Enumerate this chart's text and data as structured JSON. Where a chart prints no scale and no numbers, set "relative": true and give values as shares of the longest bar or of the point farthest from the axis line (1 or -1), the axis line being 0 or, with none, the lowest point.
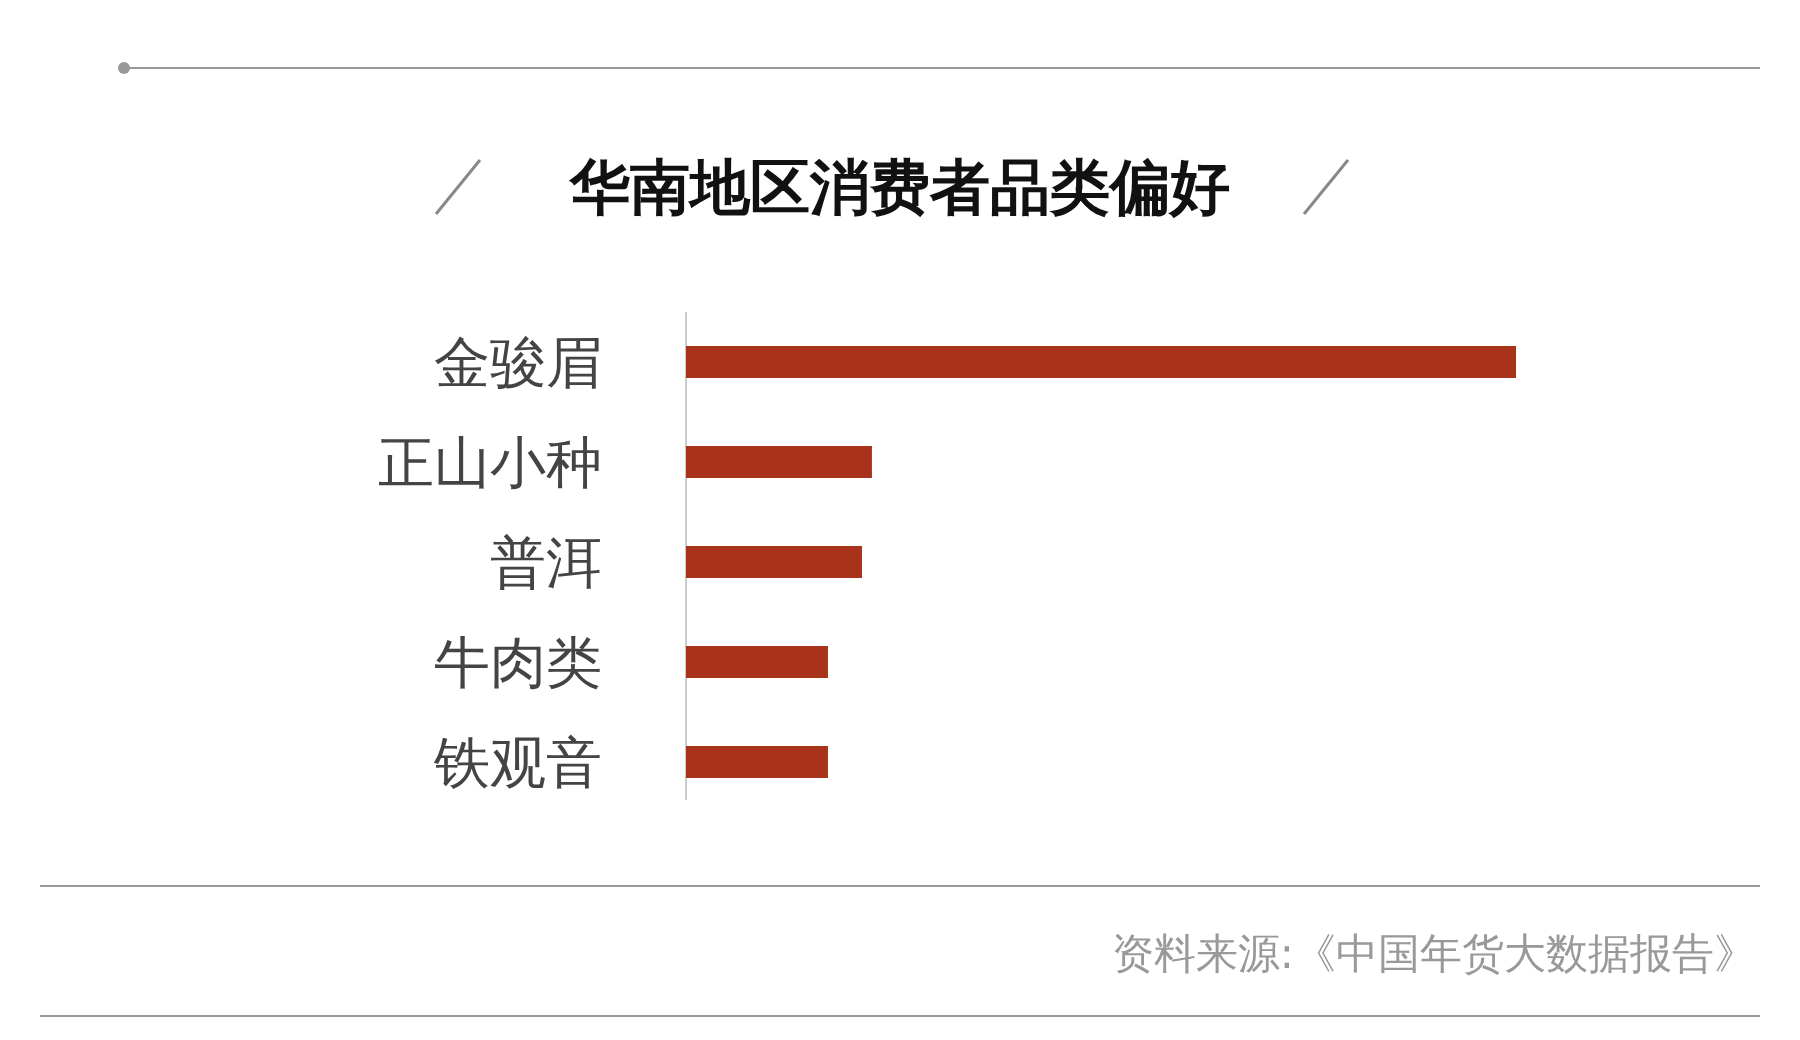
{
  "chart_data": {
    "type": "bar",
    "orientation": "horizontal",
    "relative": true,
    "title": "华南地区消费者品类偏好",
    "categories": [
      "金骏眉",
      "正山小种",
      "普洱",
      "牛肉类",
      "铁观音"
    ],
    "values": [
      1,
      0.224,
      0.212,
      0.171,
      0.171
    ],
    "color": "#a8321a",
    "annotations": [
      "资料来源:《中国年货大数据报告》"
    ]
  }
}
